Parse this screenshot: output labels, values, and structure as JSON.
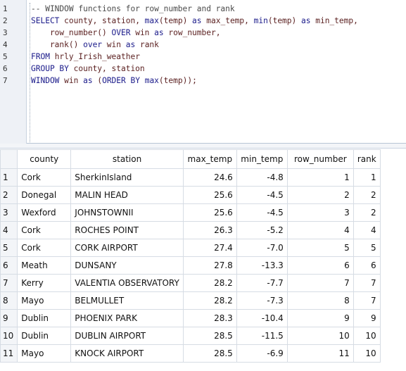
{
  "editor": {
    "line_numbers": [
      "1",
      "2",
      "3",
      "4",
      "5",
      "6",
      "7"
    ],
    "lines": [
      [
        {
          "t": "-- WINDOW functions for row_number and rank",
          "c": "cm"
        }
      ],
      [
        {
          "t": "SELECT ",
          "c": "kw"
        },
        {
          "t": "county, station, ",
          "c": "id"
        },
        {
          "t": "max",
          "c": "kw"
        },
        {
          "t": "(temp) ",
          "c": "id"
        },
        {
          "t": "as ",
          "c": "kw"
        },
        {
          "t": "max_temp, ",
          "c": "id"
        },
        {
          "t": "min",
          "c": "kw"
        },
        {
          "t": "(temp) ",
          "c": "id"
        },
        {
          "t": "as ",
          "c": "kw"
        },
        {
          "t": "min_temp,",
          "c": "id"
        }
      ],
      [
        {
          "t": "    row_number() ",
          "c": "id"
        },
        {
          "t": "OVER ",
          "c": "kw"
        },
        {
          "t": "win ",
          "c": "id"
        },
        {
          "t": "as ",
          "c": "kw"
        },
        {
          "t": "row_number,",
          "c": "id"
        }
      ],
      [
        {
          "t": "    rank() ",
          "c": "id"
        },
        {
          "t": "over ",
          "c": "kw"
        },
        {
          "t": "win ",
          "c": "id"
        },
        {
          "t": "as ",
          "c": "kw"
        },
        {
          "t": "rank",
          "c": "id"
        }
      ],
      [
        {
          "t": "FROM ",
          "c": "kw"
        },
        {
          "t": "hrly_Irish_weather",
          "c": "id"
        }
      ],
      [
        {
          "t": "GROUP BY ",
          "c": "kw"
        },
        {
          "t": "county, station",
          "c": "id"
        }
      ],
      [
        {
          "t": "WINDOW ",
          "c": "kw"
        },
        {
          "t": "win ",
          "c": "id"
        },
        {
          "t": "as ",
          "c": "kw"
        },
        {
          "t": "(",
          "c": "id"
        },
        {
          "t": "ORDER BY ",
          "c": "kw"
        },
        {
          "t": "max",
          "c": "kw"
        },
        {
          "t": "(temp));",
          "c": "id"
        }
      ]
    ]
  },
  "results": {
    "columns": [
      "county",
      "station",
      "max_temp",
      "min_temp",
      "row_number",
      "rank"
    ],
    "rows": [
      {
        "n": "1",
        "county": "Cork",
        "station": "SherkinIsland",
        "max_temp": "24.6",
        "min_temp": "-4.8",
        "row_number": "1",
        "rank": "1"
      },
      {
        "n": "2",
        "county": "Donegal",
        "station": "MALIN HEAD",
        "max_temp": "25.6",
        "min_temp": "-4.5",
        "row_number": "2",
        "rank": "2"
      },
      {
        "n": "3",
        "county": "Wexford",
        "station": "JOHNSTOWNII",
        "max_temp": "25.6",
        "min_temp": "-4.5",
        "row_number": "3",
        "rank": "2"
      },
      {
        "n": "4",
        "county": "Cork",
        "station": "ROCHES POINT",
        "max_temp": "26.3",
        "min_temp": "-5.2",
        "row_number": "4",
        "rank": "4"
      },
      {
        "n": "5",
        "county": "Cork",
        "station": "CORK AIRPORT",
        "max_temp": "27.4",
        "min_temp": "-7.0",
        "row_number": "5",
        "rank": "5"
      },
      {
        "n": "6",
        "county": "Meath",
        "station": "DUNSANY",
        "max_temp": "27.8",
        "min_temp": "-13.3",
        "row_number": "6",
        "rank": "6"
      },
      {
        "n": "7",
        "county": "Kerry",
        "station": "VALENTIA OBSERVATORY",
        "max_temp": "28.2",
        "min_temp": "-7.7",
        "row_number": "7",
        "rank": "7"
      },
      {
        "n": "8",
        "county": "Mayo",
        "station": "BELMULLET",
        "max_temp": "28.2",
        "min_temp": "-7.3",
        "row_number": "8",
        "rank": "7"
      },
      {
        "n": "9",
        "county": "Dublin",
        "station": "PHOENIX PARK",
        "max_temp": "28.3",
        "min_temp": "-10.4",
        "row_number": "9",
        "rank": "9"
      },
      {
        "n": "10",
        "county": "Dublin",
        "station": "DUBLIN AIRPORT",
        "max_temp": "28.5",
        "min_temp": "-11.5",
        "row_number": "10",
        "rank": "10"
      },
      {
        "n": "11",
        "county": "Mayo",
        "station": "KNOCK AIRPORT",
        "max_temp": "28.5",
        "min_temp": "-6.9",
        "row_number": "11",
        "rank": "10"
      }
    ]
  }
}
